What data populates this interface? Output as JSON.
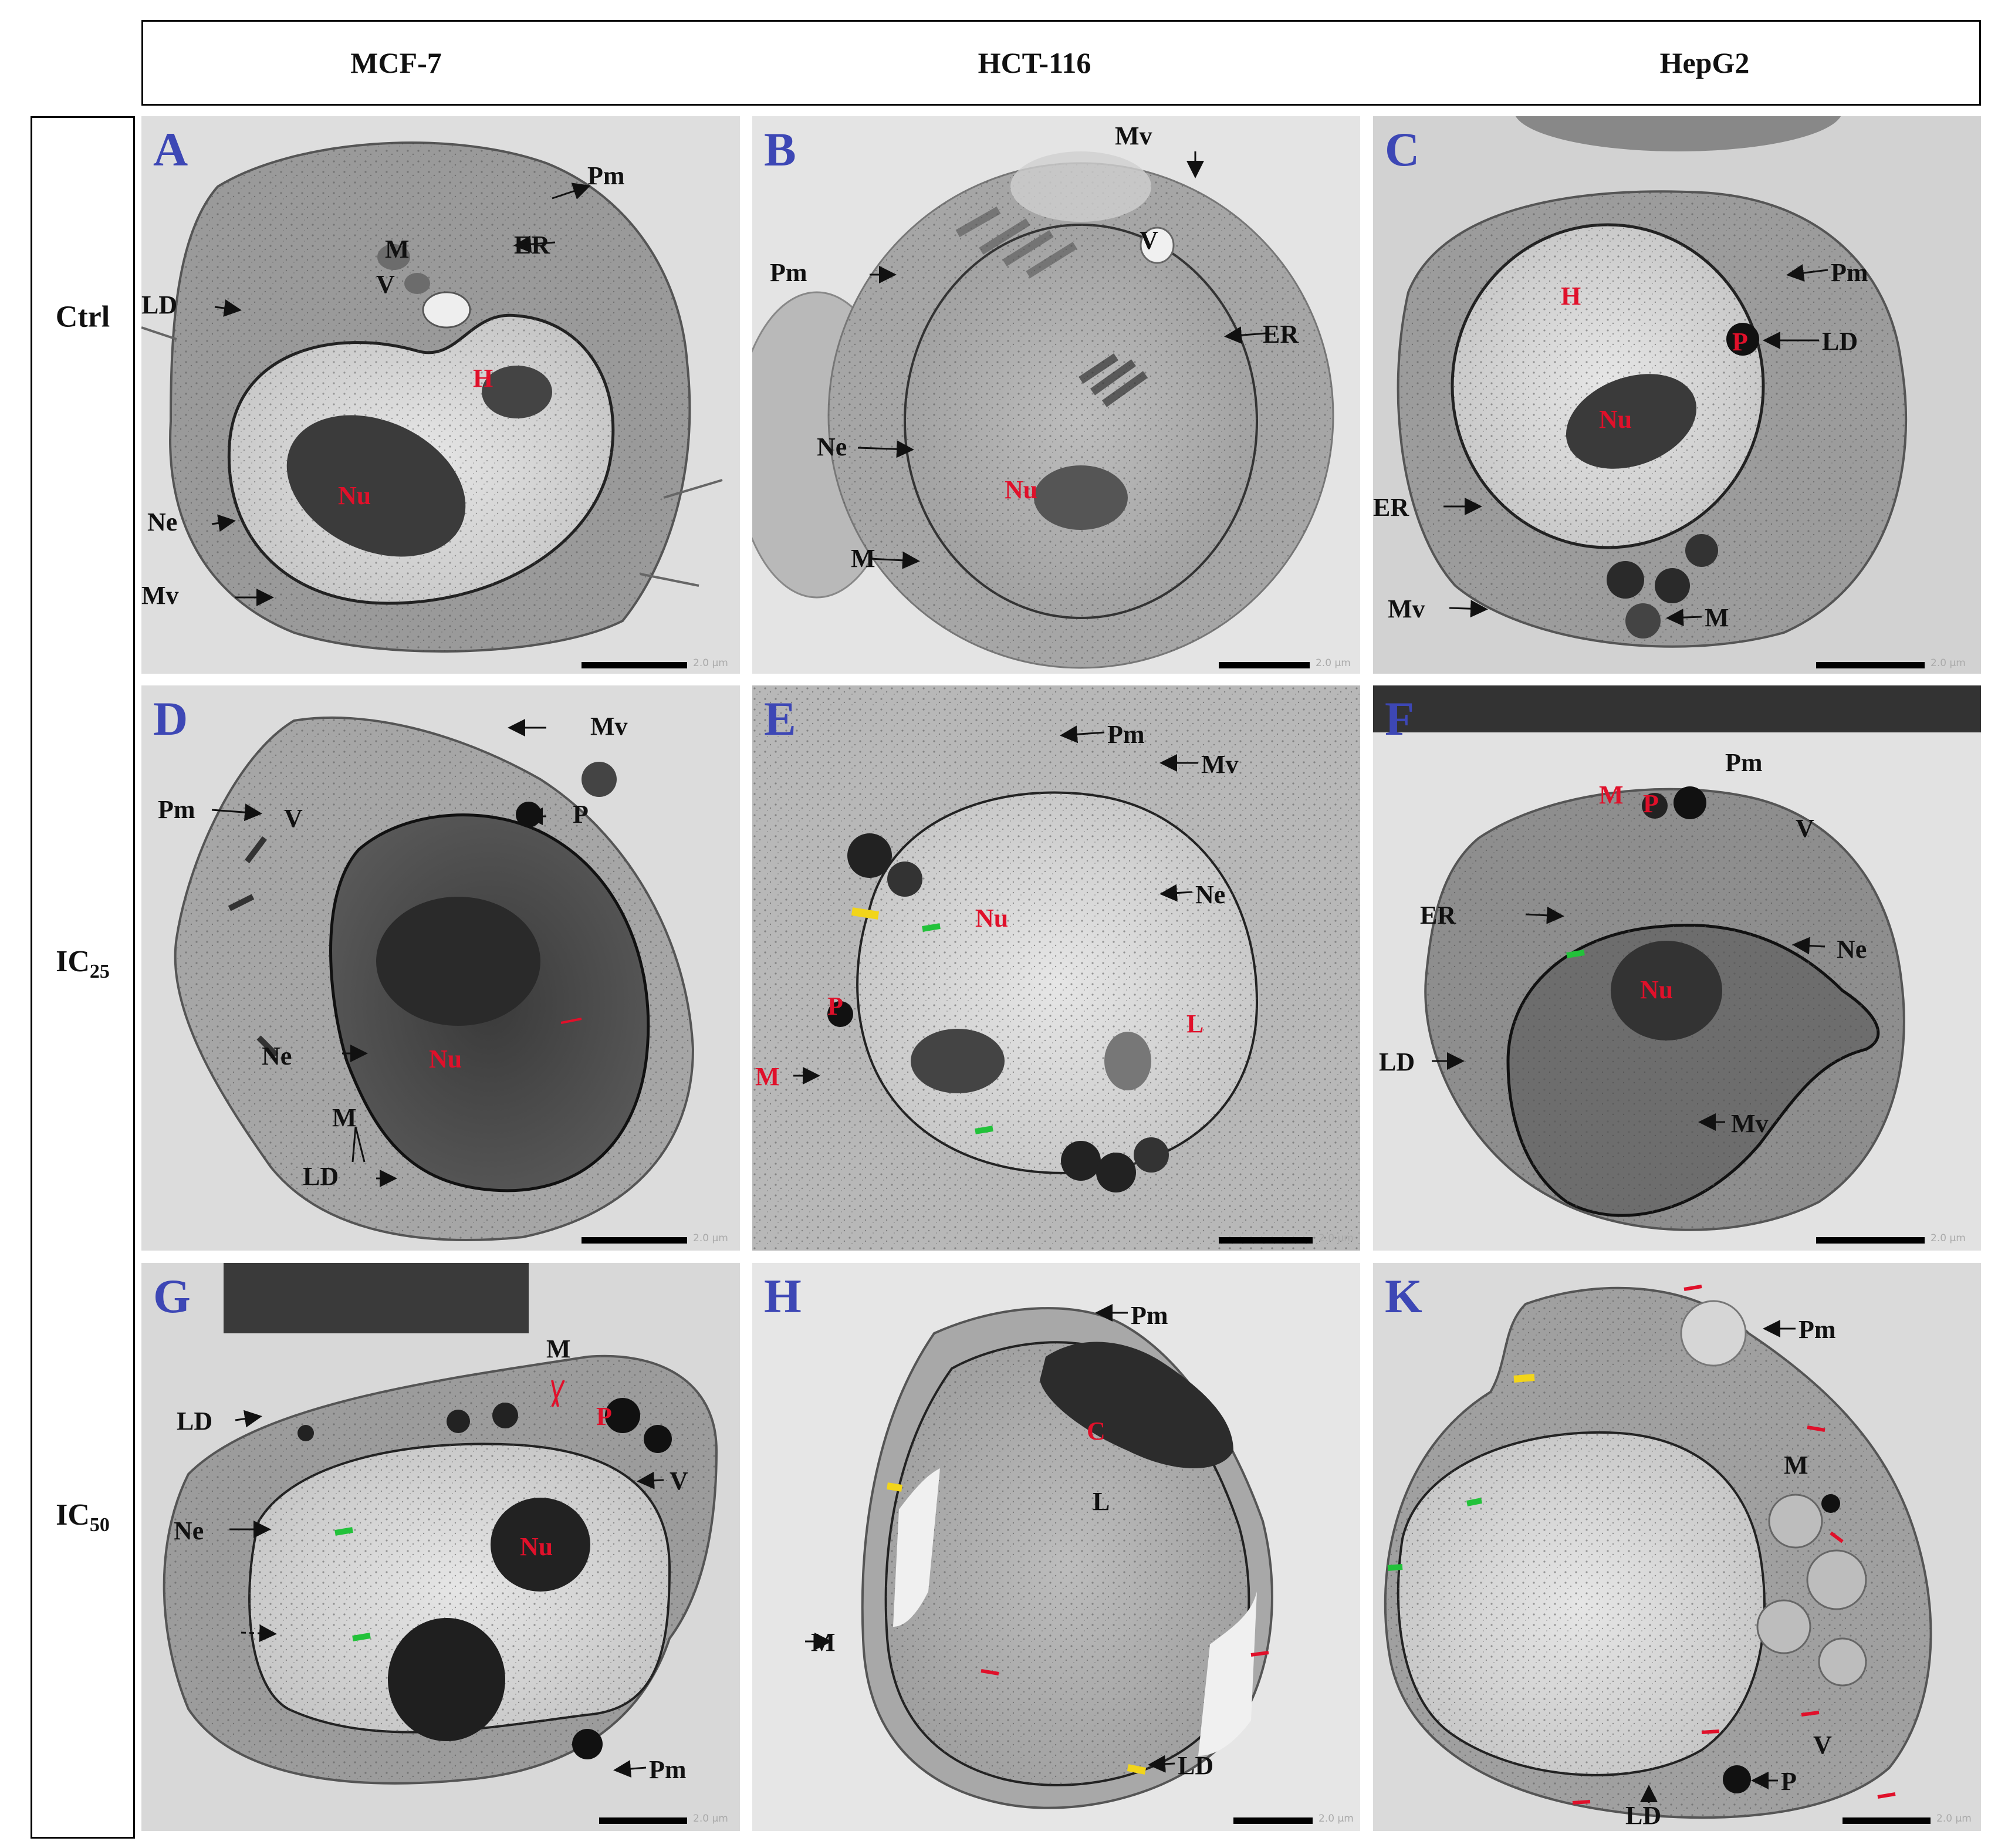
{
  "columns": [
    "MCF-7",
    "HCT-116",
    "HepG2"
  ],
  "rows": {
    "ctrl": "Ctrl",
    "ic25_base": "IC",
    "ic25_sub": "25",
    "ic50_base": "IC",
    "ic50_sub": "50"
  },
  "scale_text": "2.0 μm",
  "panels": {
    "A": {
      "letter": "A",
      "labels": {
        "Pm": "Pm",
        "M": "M",
        "ER": "ER",
        "LD": "LD",
        "V": "V",
        "H": "H",
        "Nu": "Nu",
        "Ne": "Ne",
        "Mv": "Mv"
      }
    },
    "B": {
      "letter": "B",
      "labels": {
        "Mv": "Mv",
        "Pm": "Pm",
        "V": "V",
        "ER": "ER",
        "Ne": "Ne",
        "Nu": "Nu",
        "M": "M"
      }
    },
    "C": {
      "letter": "C",
      "labels": {
        "Pm": "Pm",
        "H": "H",
        "P": "P",
        "LD": "LD",
        "Nu": "Nu",
        "ER": "ER",
        "Mv": "Mv",
        "M": "M"
      }
    },
    "D": {
      "letter": "D",
      "labels": {
        "Mv": "Mv",
        "Pm": "Pm",
        "V": "V",
        "P": "P",
        "Ne": "Ne",
        "Nu": "Nu",
        "M": "M",
        "LD": "LD"
      }
    },
    "E": {
      "letter": "E",
      "labels": {
        "Pm": "Pm",
        "Mv": "Mv",
        "Nu": "Nu",
        "Ne": "Ne",
        "P": "P",
        "L": "L",
        "M": "M"
      }
    },
    "F": {
      "letter": "F",
      "labels": {
        "Pm": "Pm",
        "M": "M",
        "P": "P",
        "V": "V",
        "ER": "ER",
        "Ne": "Ne",
        "Nu": "Nu",
        "LD": "LD",
        "Mv": "Mv"
      }
    },
    "G": {
      "letter": "G",
      "labels": {
        "M": "M",
        "LD": "LD",
        "P": "P",
        "V": "V",
        "Ne": "Ne",
        "Nu": "Nu",
        "Pm": "Pm"
      }
    },
    "H": {
      "letter": "H",
      "labels": {
        "Pm": "Pm",
        "C": "C",
        "L": "L",
        "M": "M",
        "LD": "LD"
      }
    },
    "K": {
      "letter": "K",
      "labels": {
        "Pm": "Pm",
        "M": "M",
        "V": "V",
        "P": "P",
        "LD": "LD"
      }
    }
  },
  "colors": {
    "panel_letter": "#3d47b5",
    "red_label": "#e0102a",
    "arrow_red": "#e0102a",
    "arrow_green": "#22c23a",
    "arrow_yellow": "#f2d51a"
  }
}
